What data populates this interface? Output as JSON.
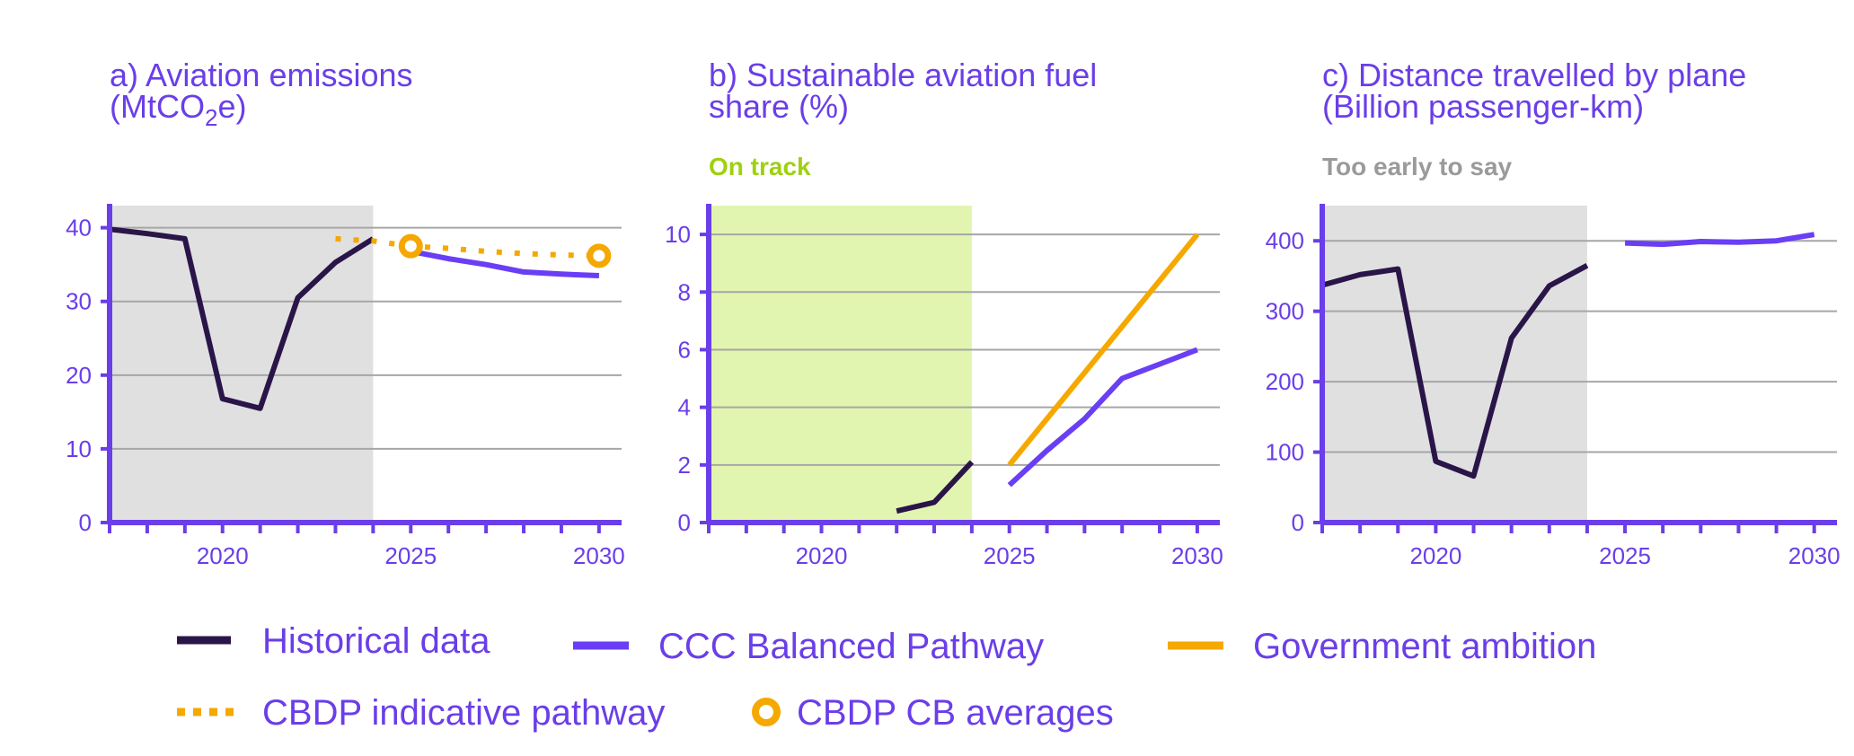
{
  "colors": {
    "historical": "#2a1548",
    "balanced": "#6a3ef5",
    "government": "#f5a800",
    "cbdp": "#f5a800",
    "axis": "#6a3ee8",
    "grid": "#a6a6a6",
    "shade_grey": "#e0e0e0",
    "shade_green": "#e2f5b0",
    "on_track": "#9ed10f",
    "too_early": "#9a9a9a"
  },
  "legend": {
    "items": [
      {
        "key": "historical",
        "label": "Historical data",
        "style": "solid-line",
        "color": "#2a1548"
      },
      {
        "key": "balanced",
        "label": "CCC Balanced Pathway",
        "style": "solid-line",
        "color": "#6a3ef5"
      },
      {
        "key": "government",
        "label": "Government ambition",
        "style": "solid-line",
        "color": "#f5a800"
      },
      {
        "key": "cbdp",
        "label": "CBDP indicative pathway",
        "style": "dotted-line",
        "color": "#f5a800"
      },
      {
        "key": "cbdp_avg",
        "label": "CBDP CB averages",
        "style": "ring-marker",
        "color": "#f5a800"
      }
    ]
  },
  "chart_data": [
    {
      "type": "line",
      "title": "a) Aviation emissions",
      "title_line2_pre": "(MtCO",
      "title_line2_sub": "2",
      "title_line2_post": "e)",
      "status": "",
      "status_color": "",
      "xlim": [
        2017,
        2030.6
      ],
      "ylim": [
        0,
        43
      ],
      "yticks": [
        0,
        10,
        20,
        30,
        40
      ],
      "ytick_labels": [
        "0",
        "10",
        "20",
        "30",
        "40"
      ],
      "xticks": [
        2020,
        2025,
        2030
      ],
      "xtick_labels": [
        "2020",
        "2025",
        "2030"
      ],
      "grid": true,
      "shade": {
        "from": 2017,
        "to": 2024,
        "color": "#e0e0e0"
      },
      "series": [
        {
          "key": "historical",
          "x": [
            2017,
            2018,
            2019,
            2020,
            2021,
            2022,
            2023,
            2024
          ],
          "y": [
            39.8,
            39.2,
            38.5,
            16.8,
            15.5,
            30.5,
            35.3,
            38.5
          ]
        },
        {
          "key": "balanced",
          "x": [
            2025,
            2026,
            2027,
            2028,
            2029,
            2030
          ],
          "y": [
            36.8,
            35.8,
            35.0,
            34.0,
            33.7,
            33.5
          ]
        },
        {
          "key": "cbdp",
          "x": [
            2023,
            2024,
            2025,
            2026,
            2027,
            2028,
            2029,
            2030
          ],
          "y": [
            38.5,
            38.2,
            37.5,
            37.2,
            36.8,
            36.5,
            36.3,
            36.2
          ]
        },
        {
          "key": "cbdp_avg",
          "x": [
            2025,
            2030
          ],
          "y": [
            37.5,
            36.2
          ]
        }
      ]
    },
    {
      "type": "line",
      "title": "b) Sustainable aviation fuel",
      "title_line2_pre": "share (%)",
      "title_line2_sub": "",
      "title_line2_post": "",
      "status": "On track",
      "status_color": "#9ed10f",
      "xlim": [
        2017,
        2030.6
      ],
      "ylim": [
        0,
        11
      ],
      "yticks": [
        0,
        2,
        4,
        6,
        8,
        10
      ],
      "ytick_labels": [
        "0",
        "2",
        "4",
        "6",
        "8",
        "10"
      ],
      "xticks": [
        2020,
        2025,
        2030
      ],
      "xtick_labels": [
        "2020",
        "2025",
        "2030"
      ],
      "grid": true,
      "shade": {
        "from": 2017,
        "to": 2024,
        "color": "#e2f5b0"
      },
      "series": [
        {
          "key": "historical",
          "x": [
            2022,
            2023,
            2024
          ],
          "y": [
            0.4,
            0.7,
            2.1
          ]
        },
        {
          "key": "balanced",
          "x": [
            2025,
            2026,
            2027,
            2028,
            2029,
            2030
          ],
          "y": [
            1.3,
            2.5,
            3.6,
            5.0,
            5.5,
            6.0
          ]
        },
        {
          "key": "government",
          "x": [
            2025,
            2030
          ],
          "y": [
            2.0,
            10.0
          ]
        }
      ]
    },
    {
      "type": "line",
      "title": "c) Distance travelled by plane",
      "title_line2_pre": "(Billion passenger-km)",
      "title_line2_sub": "",
      "title_line2_post": "",
      "status": "Too early to say",
      "status_color": "#9a9a9a",
      "xlim": [
        2017,
        2030.6
      ],
      "ylim": [
        0,
        450
      ],
      "yticks": [
        0,
        100,
        200,
        300,
        400
      ],
      "ytick_labels": [
        "0",
        "100",
        "200",
        "300",
        "400"
      ],
      "xticks": [
        2020,
        2025,
        2030
      ],
      "xtick_labels": [
        "2020",
        "2025",
        "2030"
      ],
      "grid": true,
      "shade": {
        "from": 2017,
        "to": 2024,
        "color": "#e0e0e0"
      },
      "series": [
        {
          "key": "historical",
          "x": [
            2017,
            2018,
            2019,
            2020,
            2021,
            2022,
            2023,
            2024
          ],
          "y": [
            337,
            352,
            360,
            87,
            66,
            262,
            336,
            365
          ]
        },
        {
          "key": "balanced",
          "x": [
            2025,
            2026,
            2027,
            2028,
            2029,
            2030
          ],
          "y": [
            397,
            395,
            399,
            398,
            400,
            409
          ]
        }
      ]
    }
  ]
}
